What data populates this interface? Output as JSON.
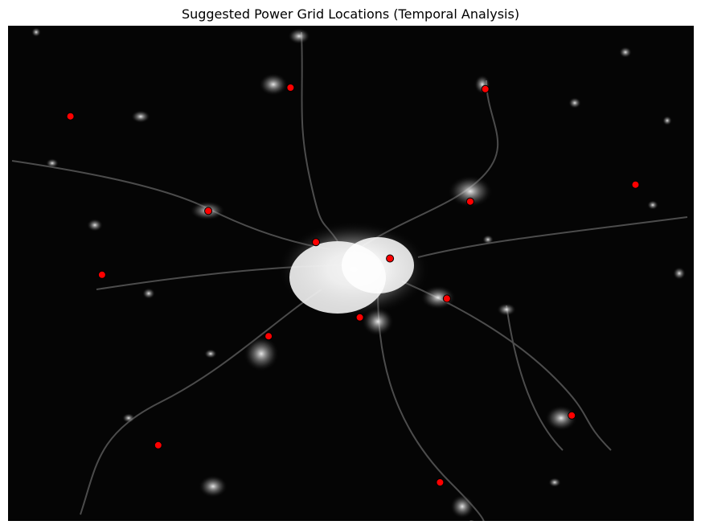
{
  "chart_data": {
    "type": "scatter",
    "title": "Suggested Power Grid Locations (Temporal Analysis)",
    "background": "grayscale nighttime-lights raster (no axes)",
    "x_range": [
      0,
      1
    ],
    "y_range": [
      0,
      1
    ],
    "marker_color": "#ff0000",
    "marker_edge": "#000000",
    "points": [
      {
        "x": 0.091,
        "y": 0.817
      },
      {
        "x": 0.412,
        "y": 0.875
      },
      {
        "x": 0.696,
        "y": 0.872
      },
      {
        "x": 0.915,
        "y": 0.679
      },
      {
        "x": 0.292,
        "y": 0.626
      },
      {
        "x": 0.674,
        "y": 0.645
      },
      {
        "x": 0.449,
        "y": 0.563
      },
      {
        "x": 0.557,
        "y": 0.53
      },
      {
        "x": 0.137,
        "y": 0.497
      },
      {
        "x": 0.64,
        "y": 0.449
      },
      {
        "x": 0.513,
        "y": 0.411
      },
      {
        "x": 0.38,
        "y": 0.373
      },
      {
        "x": 0.822,
        "y": 0.213
      },
      {
        "x": 0.219,
        "y": 0.153
      },
      {
        "x": 0.63,
        "y": 0.078
      }
    ]
  }
}
